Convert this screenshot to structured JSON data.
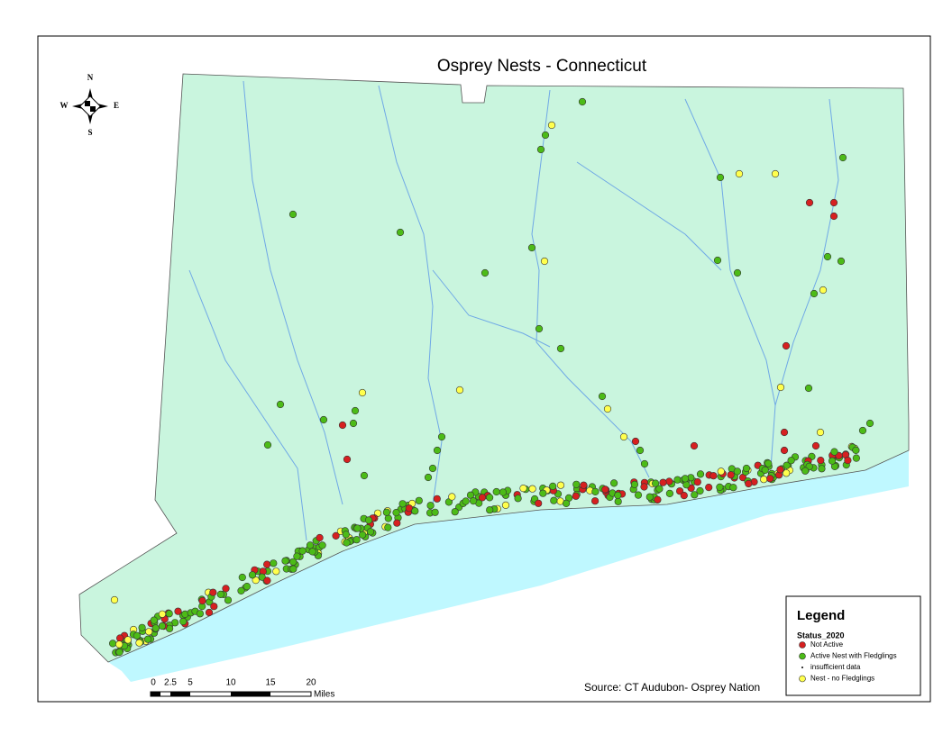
{
  "map": {
    "title": "Osprey Nests - Connecticut",
    "compass": {
      "north": "N",
      "south": "S",
      "east": "E",
      "west": "W"
    },
    "legend": {
      "title": "Legend",
      "field": "Status_2020",
      "items": [
        "Not Active",
        "Active Nest with Fledglings",
        "insufficient data",
        "Nest - no Fledglings"
      ]
    },
    "scale_bar": {
      "labels": [
        "0",
        "2.5",
        "5",
        "10",
        "15",
        "20"
      ],
      "unit": "Miles"
    },
    "source": "Source: CT Audubon- Osprey Nation"
  }
}
